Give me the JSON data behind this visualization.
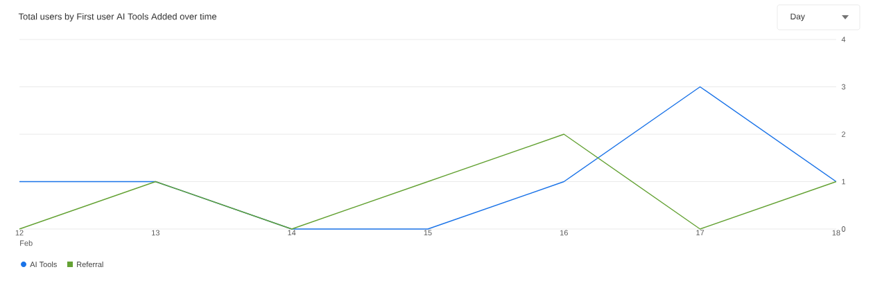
{
  "chart_data": {
    "type": "line",
    "title": "Total users by First user AI Tools Added over time",
    "categories": [
      "12",
      "13",
      "14",
      "15",
      "16",
      "17",
      "18"
    ],
    "series": [
      {
        "name": "AI Tools",
        "color": "#1a73e8",
        "values": [
          1,
          1,
          0,
          0,
          1,
          3,
          1
        ]
      },
      {
        "name": "Referral",
        "color": "#64a234",
        "values": [
          0,
          1,
          0,
          1,
          2,
          0,
          1
        ]
      }
    ],
    "ylim": [
      0,
      4
    ],
    "yticks": [
      0,
      1,
      2,
      3,
      4
    ],
    "grid": "y",
    "legend": "bottom left",
    "annotations": [
      "Feb",
      "Day"
    ]
  }
}
